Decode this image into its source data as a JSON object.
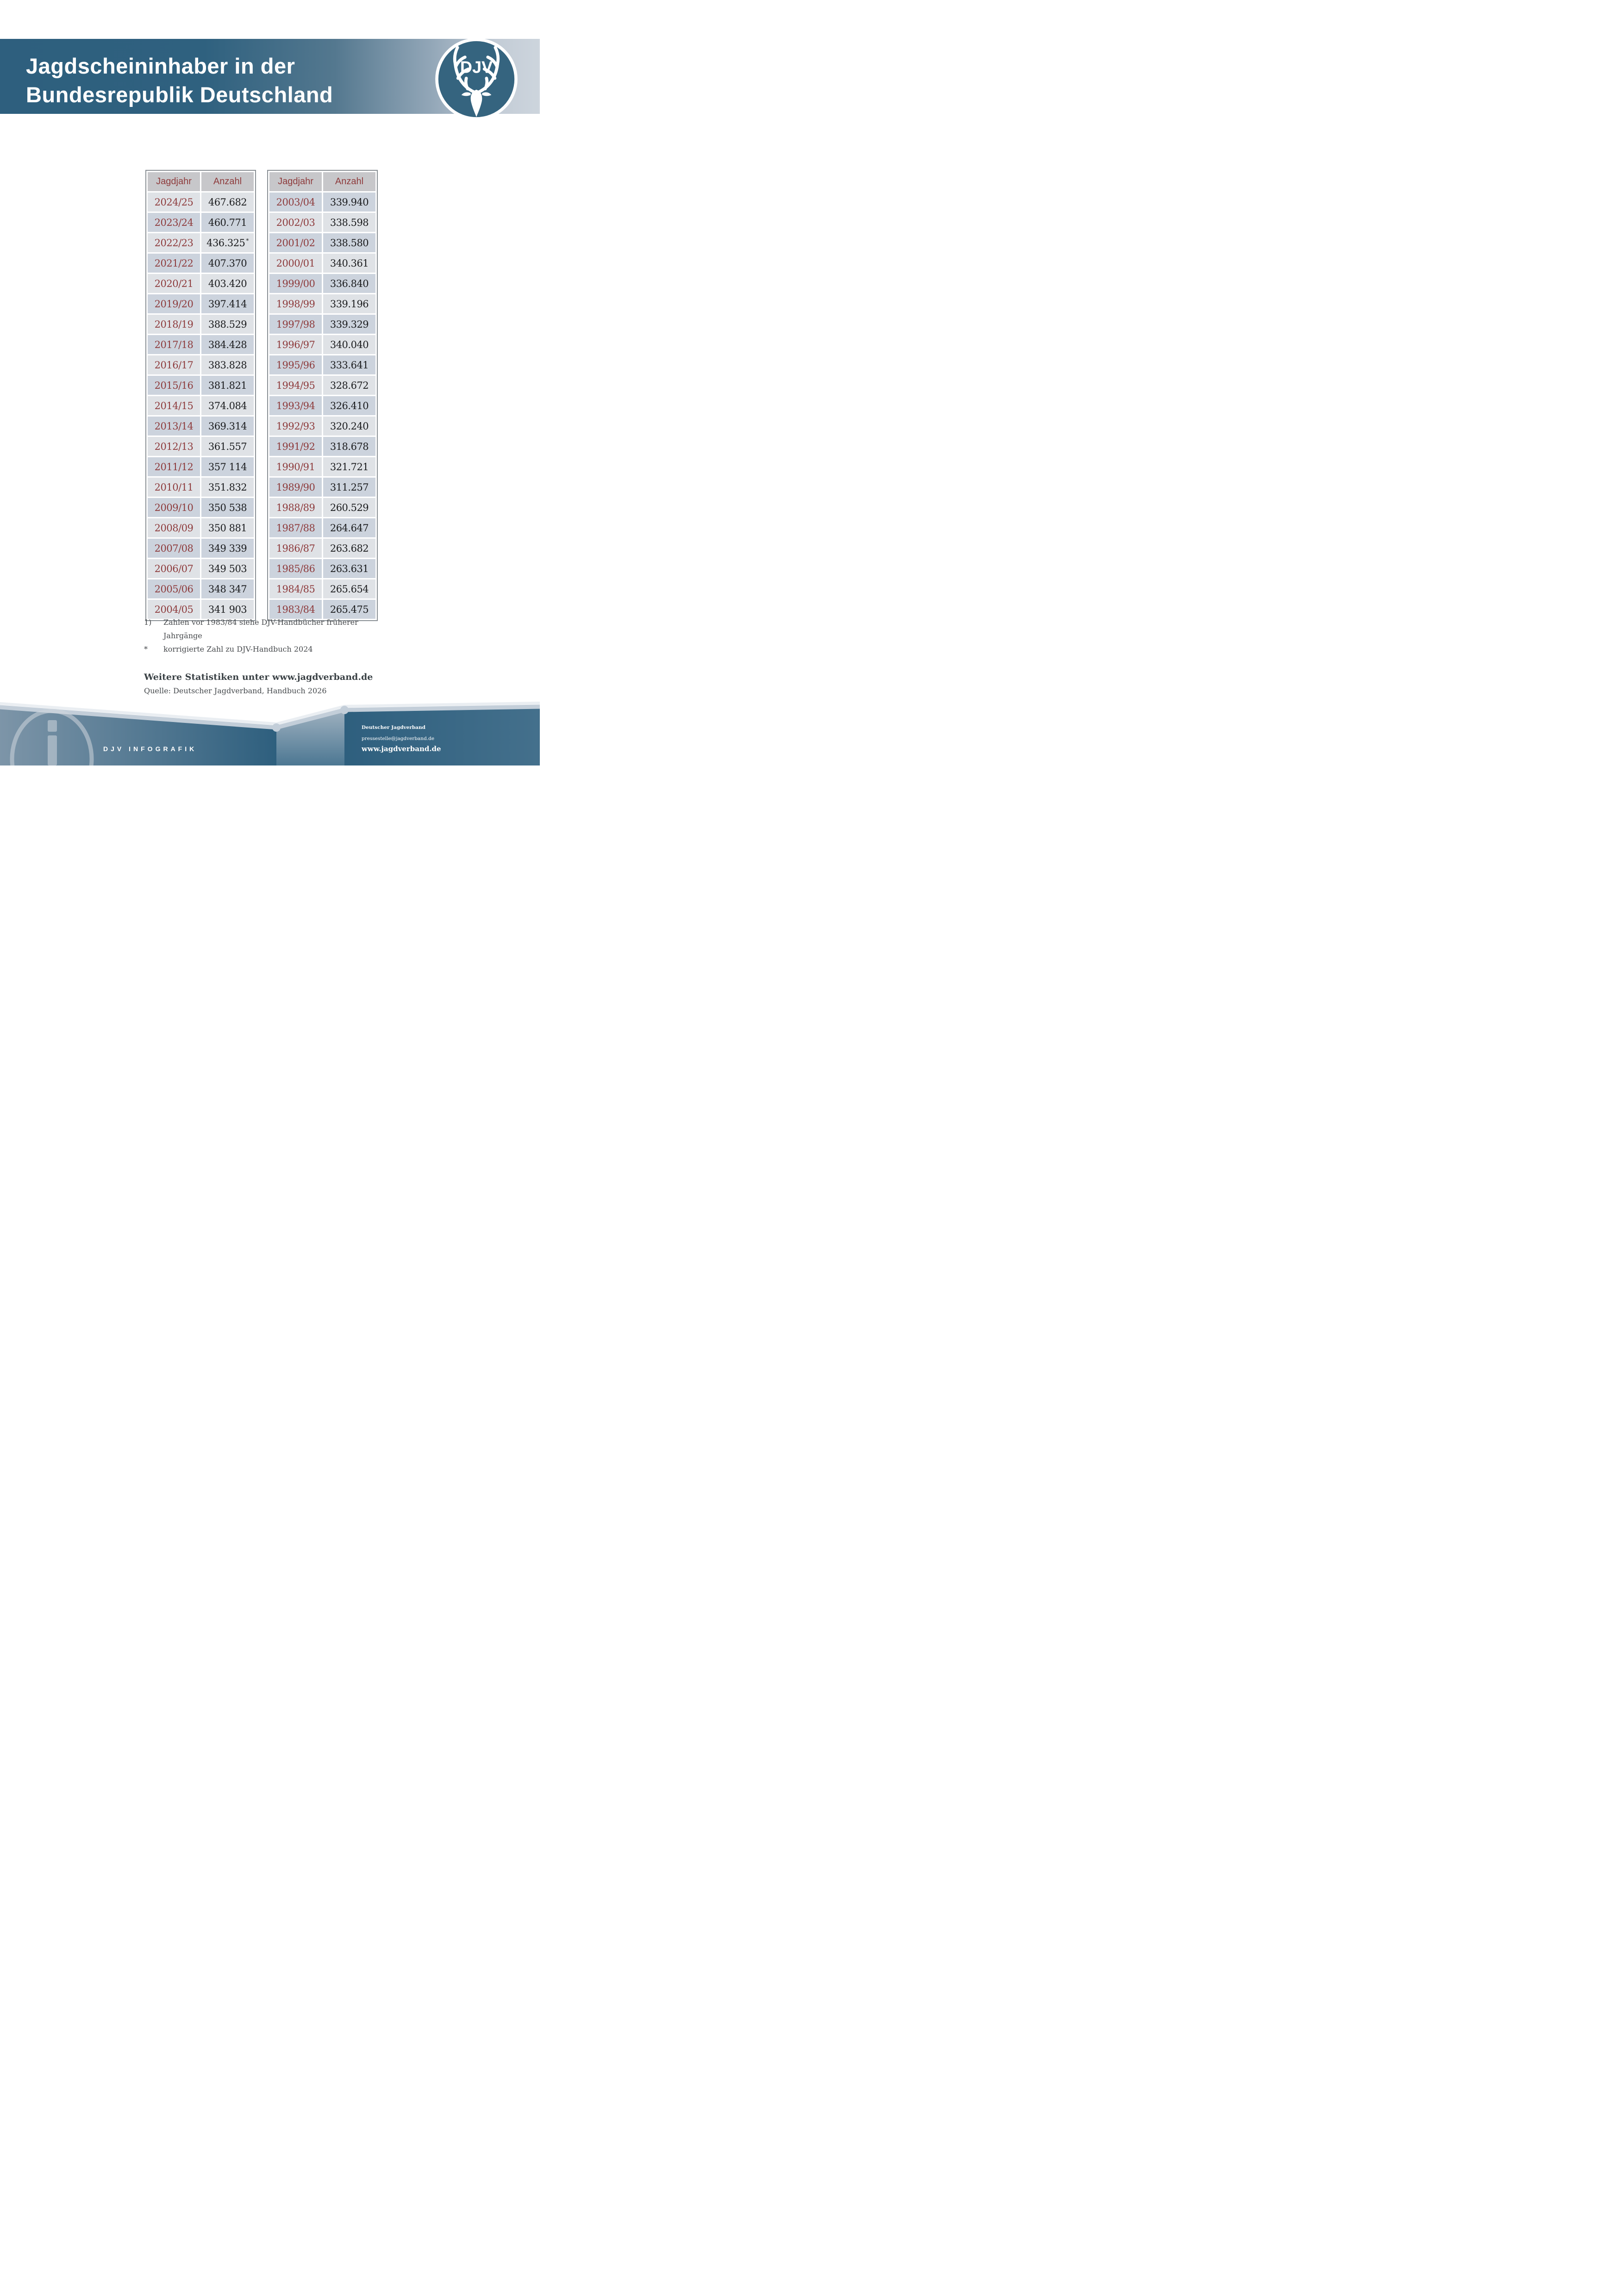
{
  "header": {
    "title_line1": "Jagdscheininhaber in der",
    "title_line2": "Bundesrepublik Deutschland",
    "logo_text": "DJV"
  },
  "tables": {
    "columns": [
      "Jagdjahr",
      "Anzahl"
    ],
    "left": {
      "rows": [
        {
          "year": "2024/25",
          "value": "467.682"
        },
        {
          "year": "2023/24",
          "value": "460.771"
        },
        {
          "year": "2022/23",
          "value": "436.325",
          "sup": "*"
        },
        {
          "year": "2021/22",
          "value": "407.370"
        },
        {
          "year": "2020/21",
          "value": "403.420"
        },
        {
          "year": "2019/20",
          "value": "397.414"
        },
        {
          "year": "2018/19",
          "value": "388.529"
        },
        {
          "year": "2017/18",
          "value": "384.428"
        },
        {
          "year": "2016/17",
          "value": "383.828"
        },
        {
          "year": "2015/16",
          "value": "381.821"
        },
        {
          "year": "2014/15",
          "value": "374.084"
        },
        {
          "year": "2013/14",
          "value": "369.314"
        },
        {
          "year": "2012/13",
          "value": "361.557"
        },
        {
          "year": "2011/12",
          "value": "357 114"
        },
        {
          "year": "2010/11",
          "value": "351.832"
        },
        {
          "year": "2009/10",
          "value": "350 538"
        },
        {
          "year": "2008/09",
          "value": "350 881"
        },
        {
          "year": "2007/08",
          "value": "349 339"
        },
        {
          "year": "2006/07",
          "value": "349 503"
        },
        {
          "year": "2005/06",
          "value": "348 347"
        },
        {
          "year": "2004/05",
          "value": "341 903"
        }
      ]
    },
    "right": {
      "rows": [
        {
          "year": "2003/04",
          "value": "339.940"
        },
        {
          "year": "2002/03",
          "value": "338.598"
        },
        {
          "year": "2001/02",
          "value": "338.580"
        },
        {
          "year": "2000/01",
          "value": "340.361"
        },
        {
          "year": "1999/00",
          "value": "336.840"
        },
        {
          "year": "1998/99",
          "value": "339.196"
        },
        {
          "year": "1997/98",
          "value": "339.329"
        },
        {
          "year": "1996/97",
          "value": "340.040"
        },
        {
          "year": "1995/96",
          "value": "333.641"
        },
        {
          "year": "1994/95",
          "value": "328.672"
        },
        {
          "year": "1993/94",
          "value": "326.410"
        },
        {
          "year": "1992/93",
          "value": "320.240"
        },
        {
          "year": "1991/92",
          "value": "318.678"
        },
        {
          "year": "1990/91",
          "value": "321.721"
        },
        {
          "year": "1989/90",
          "value": "311.257"
        },
        {
          "year": "1988/89",
          "value": "260.529"
        },
        {
          "year": "1987/88",
          "value": "264.647"
        },
        {
          "year": "1986/87",
          "value": "263.682"
        },
        {
          "year": "1985/86",
          "value": "263.631"
        },
        {
          "year": "1984/85",
          "value": "265.654"
        },
        {
          "year": "1983/84",
          "value": "265.475"
        }
      ]
    }
  },
  "footnotes": [
    {
      "marker": "1)",
      "text": "Zahlen vor 1983/84 siehe DJV-Handbücher früherer Jahrgänge"
    },
    {
      "marker": "*",
      "text": "korrigierte Zahl zu DJV-Handbuch 2024"
    }
  ],
  "more_stats": "Weitere Statistiken unter www.jagdverband.de",
  "source": "Quelle: Deutscher Jagdverband, Handbuch 2026",
  "footer": {
    "brand": "DJV INFOGRAFIK",
    "org": "Deutscher Jagdverband",
    "email": "pressestelle@jagdverband.de",
    "website": "www.jagdverband.de"
  },
  "colors": {
    "header_blue": "#2e5f7e",
    "header_light": "#cdd5dd",
    "table_header_gray": "#c7c7ca",
    "row_light": "#dfe2e6",
    "row_dark": "#ccd3dd",
    "year_red": "#8e3b3c",
    "value_dark": "#1a1b1d",
    "footnote_gray": "#46494c",
    "footer_blue": "#2e5f7e",
    "footer_band": "#c3ced9"
  }
}
